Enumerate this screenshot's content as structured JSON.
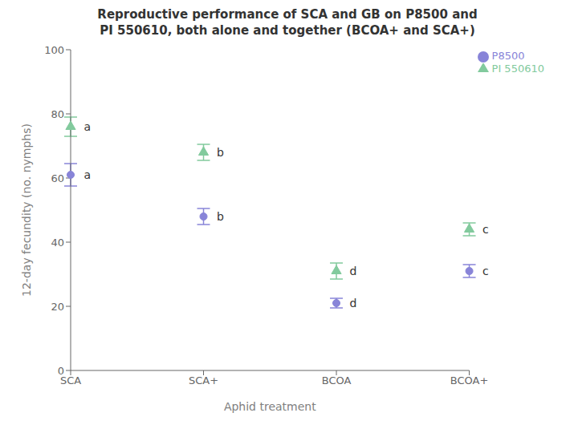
{
  "chart_data": {
    "type": "scatter",
    "title": "Reproductive performance of SCA and GB on P8500 and\nPI 550610, both alone and together (BCOA+ and SCA+)",
    "x_label": "Aphid treatment",
    "y_label": "12-day fecundity (no. nymphs)",
    "categories": [
      "SCA",
      "SCA+",
      "BCOA",
      "BCOA+"
    ],
    "series": [
      {
        "name": "P8500",
        "values": [
          61,
          48,
          21,
          31
        ],
        "errors": [
          3.5,
          2.5,
          1.5,
          2.0
        ],
        "annotations": [
          "a",
          "b",
          "d",
          "c"
        ],
        "marker": "circle",
        "color": "#8884d8"
      },
      {
        "name": "PI 550610",
        "values": [
          76,
          68,
          31,
          44
        ],
        "errors": [
          3.0,
          2.5,
          2.5,
          2.0
        ],
        "annotations": [
          "a",
          "b",
          "d",
          "c"
        ],
        "marker": "triangle",
        "color": "#82ca9d"
      }
    ],
    "ylim": [
      0,
      100
    ],
    "yticks": [
      0,
      20,
      40,
      60,
      80,
      100
    ],
    "grid": false,
    "legend": "upper right"
  }
}
